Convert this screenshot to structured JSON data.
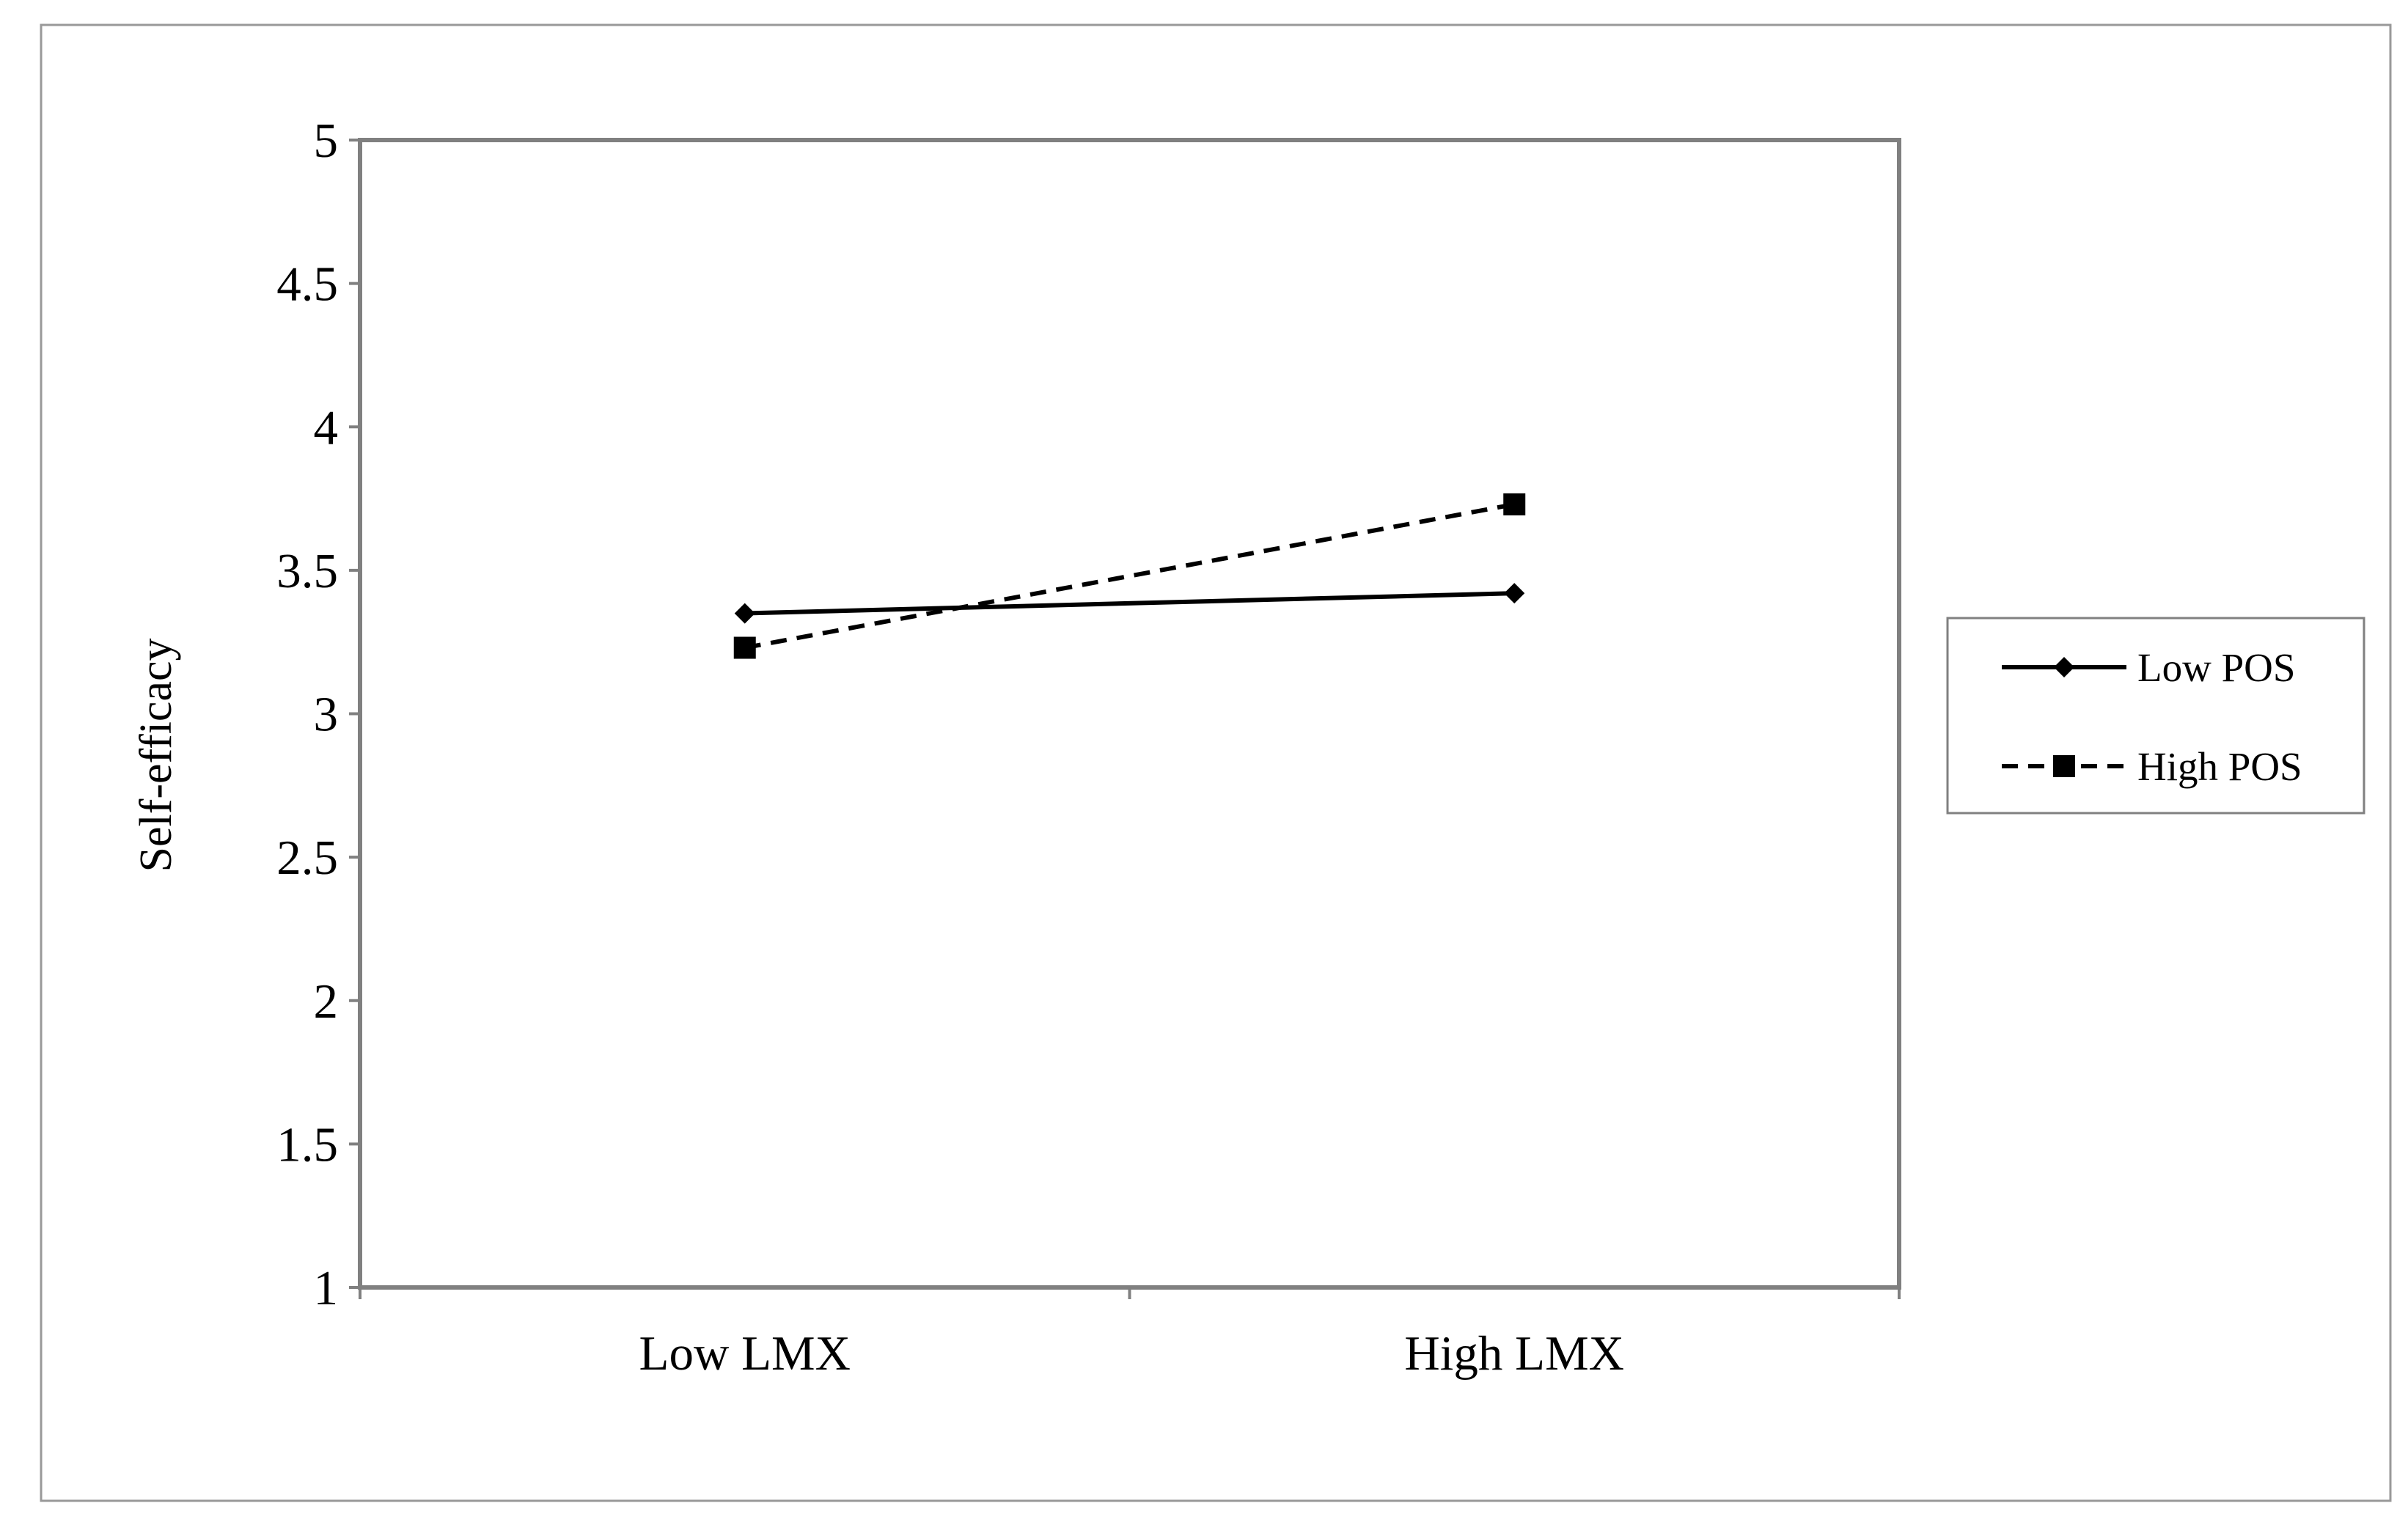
{
  "chart_data": {
    "type": "line",
    "title": "",
    "xlabel": "",
    "ylabel": "Self-efficacy",
    "categories": [
      "Low LMX",
      "High LMX"
    ],
    "ylim": [
      1,
      5
    ],
    "yticks": [
      1,
      1.5,
      2,
      2.5,
      3,
      3.5,
      4,
      4.5,
      5
    ],
    "ytick_labels": [
      "1",
      "1.5",
      "2",
      "2.5",
      "3",
      "3.5",
      "4",
      "4.5",
      "5"
    ],
    "grid": false,
    "legend_position": "right",
    "series": [
      {
        "name": "Low POS",
        "values": [
          3.35,
          3.42
        ],
        "line_style": "solid",
        "marker": "diamond",
        "color": "#000000"
      },
      {
        "name": "High POS",
        "values": [
          3.23,
          3.73
        ],
        "line_style": "dashed",
        "marker": "square",
        "color": "#000000"
      }
    ]
  }
}
